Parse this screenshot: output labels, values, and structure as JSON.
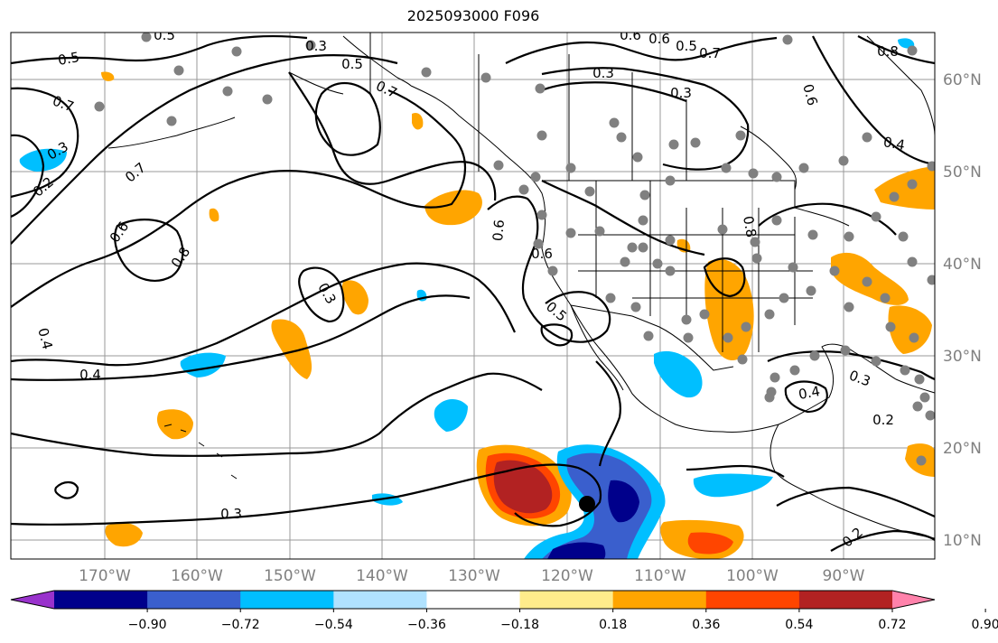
{
  "title": "2025093000 F096",
  "longitude_labels": [
    "170°W",
    "160°W",
    "150°W",
    "140°W",
    "130°W",
    "120°W",
    "110°W",
    "100°W",
    "90°W"
  ],
  "latitude_labels": [
    "60°N",
    "50°N",
    "40°N",
    "30°N",
    "20°N",
    "10°N"
  ],
  "colorbar": {
    "colors": [
      "#9932cc",
      "#00008b",
      "#3a5fcd",
      "#00bfff",
      "#b0e2ff",
      "#ffffff",
      "#ffec8b",
      "#ffa500",
      "#ff4500",
      "#b22222",
      "#ff82ab"
    ],
    "labels": [
      "−0.90",
      "−0.72",
      "−0.54",
      "−0.36",
      "−0.18",
      "0.18",
      "0.36",
      "0.54",
      "0.72",
      "0.90"
    ]
  },
  "contour_labels": [
    "0.5",
    "0.3",
    "0.5",
    "0.7",
    "0.6",
    "0.5",
    "0.8",
    "0.7",
    "0.3",
    "0.2",
    "0.7",
    "0.6",
    "0.8",
    "0.5",
    "0.6",
    "0.7",
    "0.5",
    "0.6",
    "0.4",
    "0.3",
    "0.3",
    "0.4",
    "0.6",
    "0.6",
    "0.8",
    "0.3",
    "0.4",
    "0.4",
    "0.3",
    "0.2",
    "0.3",
    "0.2"
  ]
}
